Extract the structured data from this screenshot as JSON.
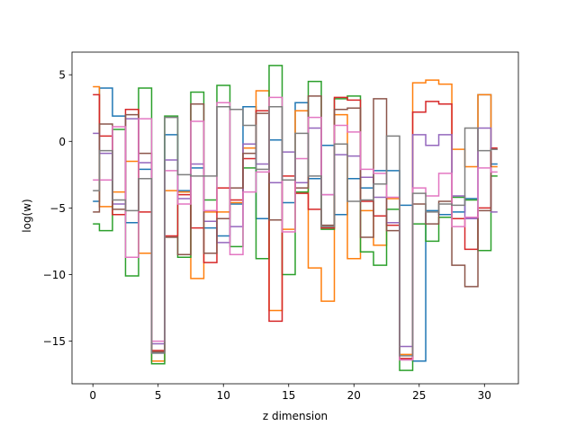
{
  "chart_data": {
    "type": "line",
    "drawstyle": "steps-mid",
    "xlabel": "z dimension",
    "ylabel": "log(w)",
    "xlim": [
      -1.6,
      32.6
    ],
    "ylim": [
      -18.2,
      6.7
    ],
    "xticks": [
      0,
      5,
      10,
      15,
      20,
      25,
      30
    ],
    "yticks": [
      -15,
      -10,
      -5,
      0,
      5
    ],
    "ytick_labels": [
      "−15",
      "−10",
      "−5",
      "0",
      "5"
    ],
    "grid": false,
    "legend": "none",
    "series": [
      {
        "color": "#1f77b4",
        "values": [
          -4.5,
          4.0,
          1.9,
          -6.1,
          -2.1,
          -15.9,
          0.5,
          -3.7,
          -2.0,
          -6.5,
          -7.1,
          -4.7,
          2.6,
          -5.8,
          0.1,
          -4.6,
          2.9,
          -2.8,
          -0.3,
          -5.5,
          -2.8,
          -3.5,
          -2.2,
          -2.2,
          -4.8,
          -16.5,
          -5.2,
          -5.5,
          -5.3,
          -4.3,
          3.5,
          -1.7
        ]
      },
      {
        "color": "#ff7f0e",
        "values": [
          4.1,
          -4.9,
          -3.8,
          -1.5,
          -8.4,
          -16.5,
          -3.7,
          -3.8,
          -10.3,
          -5.3,
          -5.3,
          -4.6,
          -0.5,
          3.8,
          -12.7,
          -6.6,
          2.3,
          -9.5,
          -12.0,
          2.0,
          -8.8,
          -5.2,
          -7.8,
          -4.3,
          -16.0,
          4.4,
          4.6,
          4.3,
          -0.6,
          -1.9,
          3.5,
          -1.9
        ]
      },
      {
        "color": "#2ca02c",
        "values": [
          -6.2,
          -6.7,
          0.9,
          -10.1,
          4.0,
          -16.7,
          1.9,
          -8.7,
          3.7,
          -4.4,
          4.2,
          -7.9,
          -2.0,
          -8.8,
          5.7,
          -10.0,
          -3.8,
          4.5,
          -6.6,
          3.2,
          3.4,
          -8.3,
          -9.3,
          -5.1,
          -17.2,
          -6.2,
          -7.5,
          -5.7,
          -4.2,
          -4.4,
          -8.2,
          -2.6
        ]
      },
      {
        "color": "#d62728",
        "values": [
          3.5,
          0.4,
          -5.5,
          2.4,
          -5.3,
          -15.7,
          -7.1,
          -4.0,
          -6.5,
          -9.1,
          -3.5,
          -4.4,
          -1.3,
          2.3,
          -13.5,
          -2.6,
          -3.9,
          -5.1,
          -6.5,
          3.3,
          3.1,
          -4.5,
          -5.6,
          -6.3,
          -16.3,
          2.2,
          3.0,
          2.8,
          -5.8,
          -8.1,
          -5.0,
          -0.5
        ]
      },
      {
        "color": "#9467bd",
        "values": [
          0.6,
          -0.9,
          -4.7,
          1.7,
          -1.6,
          -15.2,
          -1.4,
          -4.3,
          -1.7,
          -6.0,
          -7.6,
          -6.4,
          -0.2,
          -1.7,
          -3.1,
          -0.8,
          -3.1,
          1.0,
          -4.0,
          -1.0,
          -1.1,
          -2.7,
          -4.2,
          -6.1,
          -15.4,
          0.5,
          -0.3,
          0.5,
          -4.1,
          -5.8,
          1.0,
          -5.3
        ]
      },
      {
        "color": "#8c564b",
        "values": [
          -5.3,
          1.3,
          -5.1,
          2.0,
          -0.9,
          -15.8,
          -7.2,
          -8.5,
          2.8,
          -8.4,
          -5.8,
          -3.5,
          -0.9,
          2.1,
          -5.9,
          -2.9,
          -3.5,
          3.4,
          -6.3,
          2.4,
          2.5,
          -7.2,
          3.2,
          -6.7,
          -16.4,
          -4.7,
          -6.2,
          -4.5,
          -9.3,
          -10.9,
          -5.2,
          -0.6
        ]
      },
      {
        "color": "#e377c2",
        "values": [
          -2.9,
          -2.9,
          1.1,
          -8.7,
          1.7,
          -15.0,
          -2.2,
          -4.7,
          1.5,
          -5.2,
          2.9,
          -8.5,
          -3.8,
          -2.3,
          3.3,
          -6.8,
          -1.3,
          1.8,
          -4.0,
          1.2,
          0.7,
          -2.1,
          -2.4,
          -4.2,
          -16.4,
          -3.5,
          -4.1,
          -2.4,
          -6.4,
          -5.7,
          -2.0,
          -2.3
        ]
      },
      {
        "color": "#7f7f7f",
        "values": [
          -3.7,
          -0.7,
          -4.4,
          -5.2,
          -2.8,
          -15.9,
          1.8,
          -2.5,
          -2.6,
          -2.6,
          2.6,
          2.4,
          1.2,
          -2.1,
          2.6,
          -2.9,
          0.6,
          -2.6,
          -6.4,
          -0.2,
          -4.5,
          -4.4,
          -3.2,
          0.4,
          -16.1,
          -3.9,
          -5.3,
          -4.7,
          -4.8,
          1.0,
          -0.7,
          -0.6
        ]
      }
    ]
  }
}
